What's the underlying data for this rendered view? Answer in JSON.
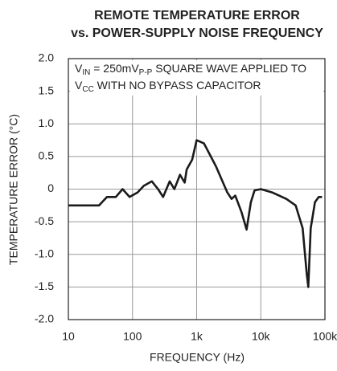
{
  "chart_data": {
    "type": "line",
    "title_lines": [
      "REMOTE TEMPERATURE ERROR",
      "vs. POWER-SUPPLY NOISE FREQUENCY"
    ],
    "annotation_lines": [
      [
        "V",
        "IN",
        " = 250mV",
        "P-P",
        " SQUARE WAVE APPLIED TO"
      ],
      [
        "V",
        "CC",
        " WITH NO BYPASS CAPACITOR"
      ]
    ],
    "x_label": "FREQUENCY (Hz)",
    "y_label": "TEMPERATURE ERROR (°C)",
    "xscale": "log",
    "grid": true,
    "xlim": [
      10,
      100000
    ],
    "ylim": [
      -2,
      2
    ],
    "xticks": [
      10,
      100,
      {
        "value": 1000,
        "label": "1k"
      },
      {
        "value": 10000,
        "label": "10k"
      },
      {
        "value": 100000,
        "label": "100k"
      }
    ],
    "yticks": [
      {
        "value": 2,
        "label": "2.0"
      },
      1.5,
      {
        "value": 1,
        "label": "1.0"
      },
      0.5,
      0,
      -0.5,
      {
        "value": -1,
        "label": "-1.0"
      },
      -1.5,
      {
        "value": -2,
        "label": "-2.0"
      }
    ],
    "series": [
      {
        "color": "#1a1a1a",
        "x": [
          10,
          30,
          40,
          55,
          70,
          90,
          120,
          150,
          200,
          250,
          300,
          380,
          450,
          550,
          650,
          700,
          850,
          1000,
          1300,
          2000,
          3000,
          3500,
          4000,
          5000,
          6000,
          7000,
          8000,
          10000,
          15000,
          25000,
          35000,
          45000,
          52000,
          55000,
          60000,
          70000,
          80000,
          90000
        ],
        "values": [
          -0.25,
          -0.25,
          -0.12,
          -0.12,
          0.0,
          -0.12,
          -0.05,
          0.05,
          0.12,
          0.0,
          -0.12,
          0.12,
          0.0,
          0.22,
          0.1,
          0.3,
          0.45,
          0.75,
          0.7,
          0.35,
          -0.05,
          -0.15,
          -0.1,
          -0.35,
          -0.62,
          -0.2,
          -0.02,
          0,
          -0.05,
          -0.15,
          -0.25,
          -0.6,
          -1.3,
          -1.5,
          -0.6,
          -0.2,
          -0.12,
          -0.12
        ]
      }
    ]
  }
}
